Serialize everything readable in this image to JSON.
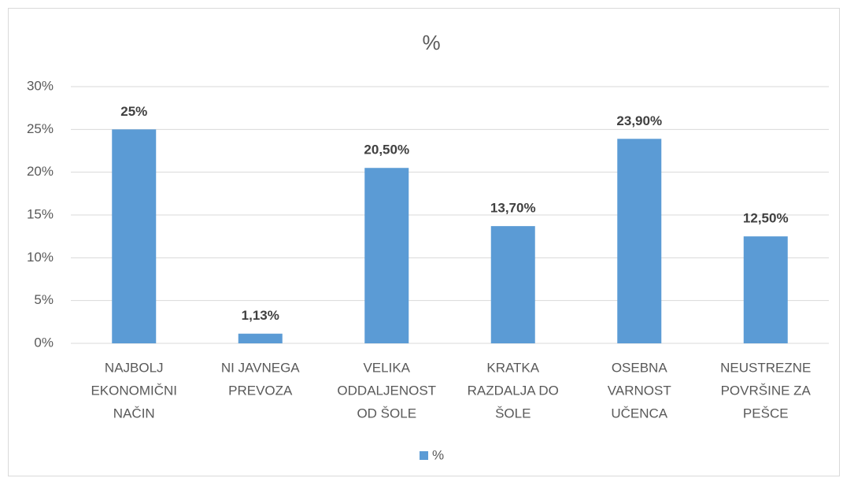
{
  "chart_data": {
    "type": "bar",
    "title": "%",
    "categories": [
      [
        "NAJBOLJ",
        "EKONOMIČNI",
        "NAČIN"
      ],
      [
        "NI JAVNEGA",
        "PREVOZA"
      ],
      [
        "VELIKA",
        "ODDALJENOST",
        "OD ŠOLE"
      ],
      [
        "KRATKA",
        "RAZDALJA DO",
        "ŠOLE"
      ],
      [
        "OSEBNA",
        "VARNOST",
        "UČENCA"
      ],
      [
        "NEUSTREZNE",
        "POVRŠINE ZA",
        "PEŠCE"
      ]
    ],
    "series": [
      {
        "name": "%",
        "color": "#5b9bd5",
        "values": [
          25,
          1.13,
          20.5,
          13.7,
          23.9,
          12.5
        ],
        "value_labels": [
          "25%",
          "1,13%",
          "20,50%",
          "13,70%",
          "23,90%",
          "12,50%"
        ]
      }
    ],
    "ylim": [
      0,
      30
    ],
    "yticks": [
      {
        "value": 0,
        "label": "0%"
      },
      {
        "value": 5,
        "label": "5%"
      },
      {
        "value": 10,
        "label": "10%"
      },
      {
        "value": 15,
        "label": "15%"
      },
      {
        "value": 20,
        "label": "20%"
      },
      {
        "value": 25,
        "label": "25%"
      },
      {
        "value": 30,
        "label": "30%"
      }
    ],
    "grid": true,
    "legend": "bottom"
  }
}
